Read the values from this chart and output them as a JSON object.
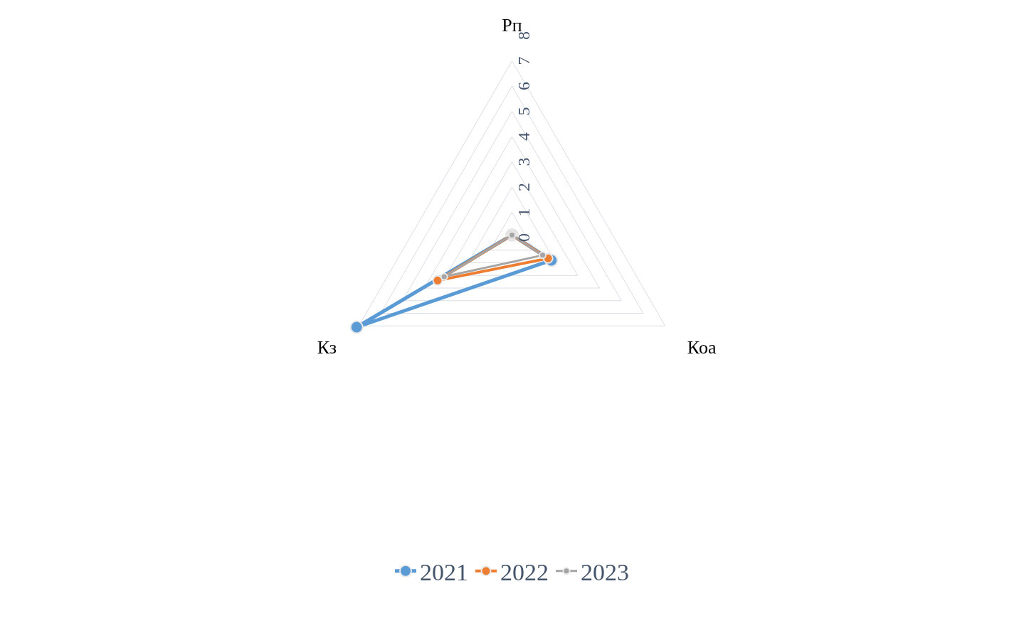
{
  "chart_data": {
    "type": "radar",
    "categories": [
      "Рп",
      "Коа",
      "Кз"
    ],
    "series": [
      {
        "name": "2021",
        "color": "#5b9bd5",
        "values": [
          0.1,
          1.8,
          7.1
        ]
      },
      {
        "name": "2022",
        "color": "#ed7d31",
        "values": [
          0.1,
          1.65,
          3.4
        ]
      },
      {
        "name": "2023",
        "color": "#a5a5a5",
        "values": [
          0.1,
          1.4,
          3.1
        ]
      }
    ],
    "ylim": [
      0,
      8
    ],
    "yticks": [
      0,
      1,
      2,
      3,
      4,
      5,
      6,
      7,
      8
    ],
    "grid": true,
    "legend": "bottom",
    "marker": "circle",
    "line_style": "solid"
  }
}
